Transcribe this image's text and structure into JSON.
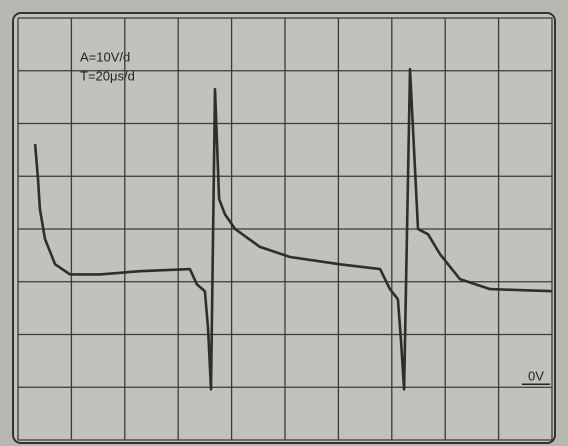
{
  "chart_data": {
    "type": "line",
    "annotations": {
      "amplitude": "A=10V/d",
      "timebase": "T=20μs/d"
    },
    "zero_marker": {
      "text": "0V",
      "value": 0
    },
    "x": [
      6.4,
      7.5,
      8.2,
      10.1,
      13.9,
      19.5,
      30.7,
      45.7,
      64.4,
      67.0,
      70.0,
      71.2,
      72.3,
      73.8,
      75.3,
      77.5,
      81.3,
      90.6,
      101.9,
      120.6,
      135.6,
      139.3,
      142.3,
      143.4,
      144.6,
      146.8,
      148.3,
      149.8,
      153.6,
      158.1,
      165.5,
      176.8,
      200
    ],
    "values": [
      46.1,
      39.5,
      33.8,
      28.1,
      23.3,
      21.4,
      21.4,
      22.0,
      22.4,
      19.5,
      18.2,
      11.0,
      -0.4,
      56.5,
      35.7,
      32.8,
      30.0,
      26.6,
      24.7,
      23.3,
      22.4,
      18.6,
      16.7,
      9.1,
      -0.4,
      60.3,
      45.2,
      30.0,
      29.0,
      25.2,
      20.5,
      18.6,
      18.2
    ],
    "color": "#2e2e2e",
    "xlim": [
      0,
      200
    ],
    "ylim": [
      -10,
      70
    ],
    "xticks": [
      0,
      20,
      40,
      60,
      80,
      100,
      120,
      140,
      160,
      180,
      200
    ],
    "yticks": [
      -10,
      0,
      10,
      20,
      30,
      40,
      50,
      60,
      70
    ],
    "grid": true
  }
}
